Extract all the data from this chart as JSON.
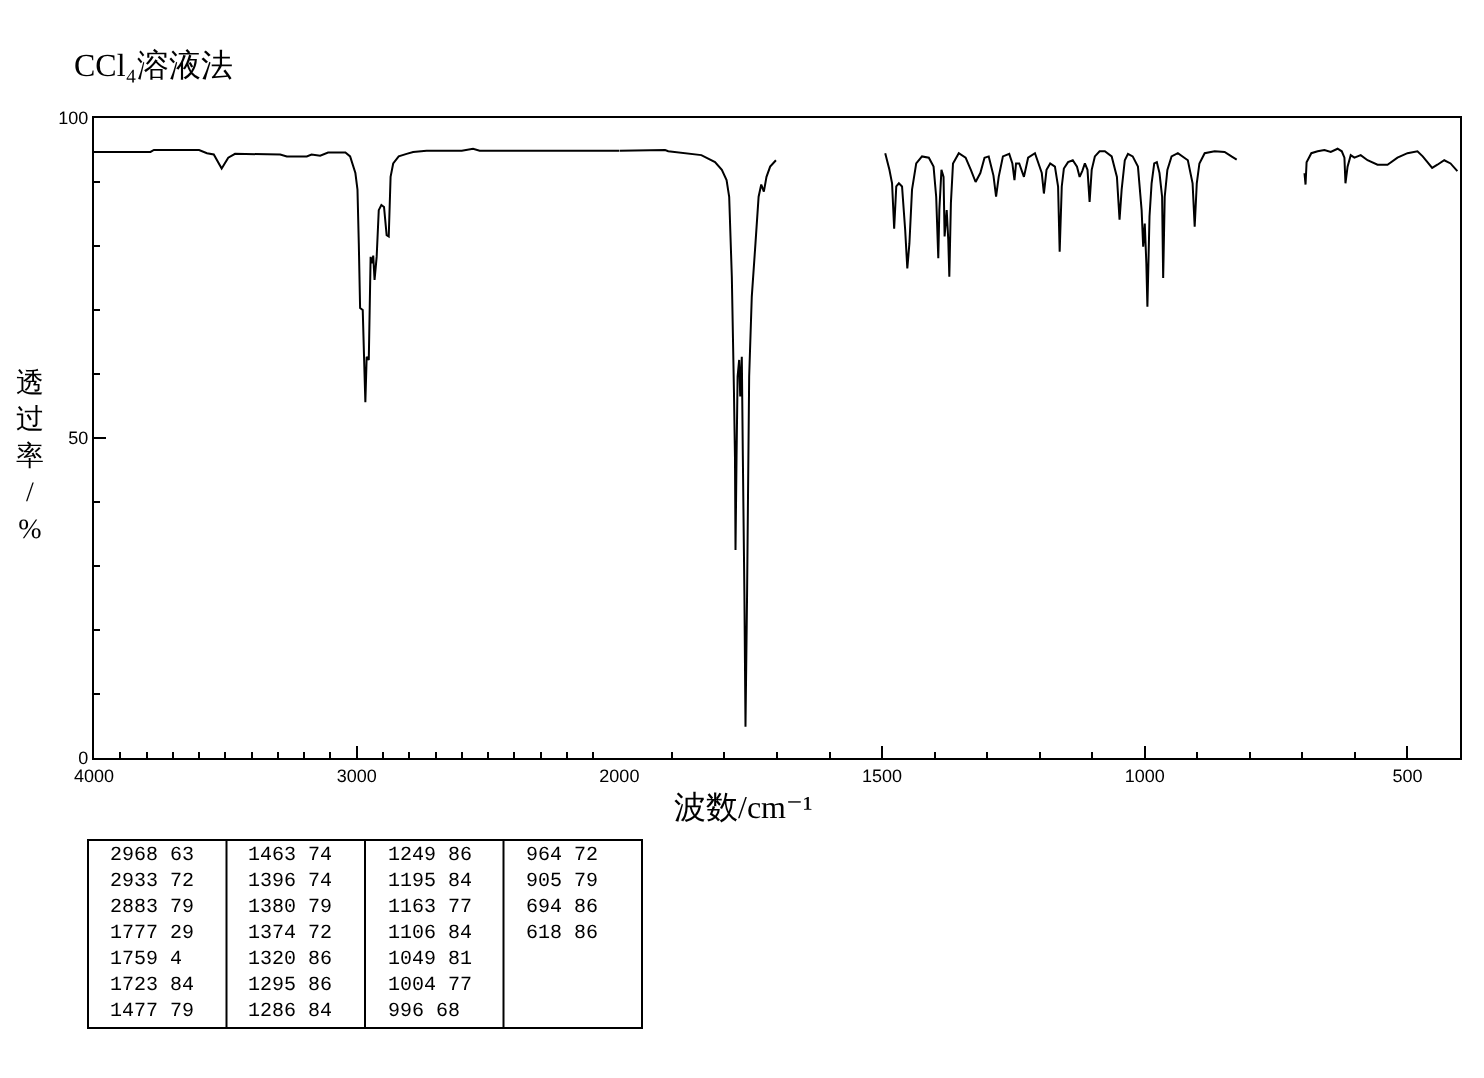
{
  "chart_data": [
    {
      "type": "line",
      "title": "CCl₄溶液法",
      "ylabel": "透过率/%",
      "color": "#000000",
      "xlim": [
        4000,
        2000
      ],
      "xticks": [
        4000,
        {
          "value": 3900,
          "label": null
        },
        {
          "value": 3800,
          "label": null
        },
        {
          "value": 3700,
          "label": null
        },
        {
          "value": 3600,
          "label": null
        },
        {
          "value": 3500,
          "label": null
        },
        {
          "value": 3400,
          "label": null
        },
        {
          "value": 3300,
          "label": null
        },
        {
          "value": 3200,
          "label": null
        },
        {
          "value": 3100,
          "label": null
        },
        3000,
        {
          "value": 2900,
          "label": null
        },
        {
          "value": 2800,
          "label": null
        },
        {
          "value": 2700,
          "label": null
        },
        {
          "value": 2600,
          "label": null
        },
        {
          "value": 2500,
          "label": null
        },
        {
          "value": 2400,
          "label": null
        },
        {
          "value": 2300,
          "label": null
        },
        {
          "value": 2200,
          "label": null
        },
        {
          "value": 2100,
          "label": null
        }
      ],
      "ylim": [
        0,
        100
      ],
      "yticks": [
        0,
        {
          "value": 10,
          "label": null
        },
        {
          "value": 20,
          "label": null
        },
        {
          "value": 30,
          "label": null
        },
        {
          "value": 40,
          "label": null
        },
        50,
        {
          "value": 60,
          "label": null
        },
        {
          "value": 70,
          "label": null
        },
        {
          "value": 80,
          "label": null
        },
        {
          "value": 90,
          "label": null
        },
        100
      ],
      "x": [
        4000,
        3785,
        3772,
        3600,
        3570,
        3544,
        3514,
        3489,
        3463,
        3291,
        3266,
        3190,
        3172,
        3139,
        3109,
        3043,
        3025,
        3005,
        2997,
        2992,
        2987,
        2977,
        2972,
        2967,
        2962,
        2954,
        2947,
        2942,
        2937,
        2932,
        2924,
        2916,
        2906,
        2896,
        2886,
        2878,
        2871,
        2861,
        2840,
        2810,
        2785,
        2734,
        2600,
        2557,
        2532,
        2000
      ],
      "values": [
        94.7,
        94.7,
        95.0,
        95.0,
        94.5,
        94.3,
        92.1,
        93.8,
        94.4,
        94.3,
        94.0,
        94.0,
        94.3,
        94.1,
        94.6,
        94.6,
        94.0,
        91.4,
        88.8,
        80.4,
        70.3,
        70.0,
        62.7,
        55.6,
        62.7,
        62.2,
        78.3,
        77.3,
        78.5,
        74.7,
        78.3,
        85.6,
        86.4,
        86.1,
        81.7,
        81.5,
        90.8,
        92.9,
        94.0,
        94.4,
        94.7,
        94.9,
        94.9,
        95.2,
        94.9,
        94.9
      ],
      "annotations": [
        "2968 63",
        "2933 72",
        "2883 79",
        "1777 29",
        "1759 4",
        "1723 84",
        "1477 79",
        "1463 74",
        "1396 74",
        "1380 79",
        "1374 72",
        "1320 86",
        "1295 86",
        "1286 84",
        "1249 86",
        "1195 84",
        "1163 77",
        "1106 84",
        "1049 81",
        "1004 77",
        "996 68",
        "964 72",
        "905 79",
        "694 86",
        "618 86"
      ]
    },
    {
      "type": "line",
      "xlabel": "波数/cm⁻¹",
      "color": "#000000",
      "xlim": [
        2000,
        400
      ],
      "xticks": [
        2000,
        {
          "value": 1900,
          "label": null
        },
        {
          "value": 1800,
          "label": null
        },
        {
          "value": 1700,
          "label": null
        },
        {
          "value": 1600,
          "label": null
        },
        1500,
        {
          "value": 1400,
          "label": null
        },
        {
          "value": 1300,
          "label": null
        },
        {
          "value": 1200,
          "label": null
        },
        {
          "value": 1100,
          "label": null
        },
        1000,
        {
          "value": 900,
          "label": null
        },
        {
          "value": 800,
          "label": null
        },
        {
          "value": 700,
          "label": null
        },
        {
          "value": 600,
          "label": null
        },
        500
      ],
      "ylim": [
        0,
        100
      ],
      "tick_labels": "x",
      "x": [
        2000,
        1913,
        1907,
        1844,
        1818,
        1805,
        1796,
        1791,
        1786,
        1782,
        1780,
        1779,
        1777,
        1775,
        1772,
        1770,
        1767,
        1765,
        1762,
        1760,
        1757,
        1753,
        1748,
        1741,
        1735,
        1730,
        1725,
        1720,
        1713,
        1702,
        1600,
        1494,
        1486,
        1481,
        1477,
        1473,
        1468,
        1462,
        1456,
        1452,
        1448,
        1443,
        1435,
        1424,
        1411,
        1402,
        1397,
        1393,
        1391,
        1387,
        1383,
        1381,
        1377,
        1374,
        1372,
        1369,
        1365,
        1354,
        1341,
        1331,
        1322,
        1313,
        1305,
        1297,
        1288,
        1283,
        1278,
        1270,
        1258,
        1252,
        1248,
        1245,
        1239,
        1230,
        1222,
        1209,
        1196,
        1192,
        1187,
        1180,
        1171,
        1165,
        1162,
        1158,
        1154,
        1146,
        1137,
        1129,
        1124,
        1119,
        1114,
        1109,
        1105,
        1101,
        1095,
        1086,
        1076,
        1063,
        1053,
        1048,
        1044,
        1038,
        1032,
        1023,
        1013,
        1006,
        1003,
        1000,
        997,
        995,
        991,
        987,
        982,
        977,
        972,
        967,
        965,
        962,
        957,
        949,
        937,
        918,
        909,
        905,
        901,
        896,
        886,
        867,
        848,
        835,
        825,
        760,
        696,
        694,
        692,
        683,
        671,
        658,
        646,
        633,
        625,
        620,
        618,
        614,
        608,
        601,
        589,
        576,
        557,
        538,
        519,
        500,
        481,
        471,
        462,
        453,
        443,
        430,
        418,
        405
      ],
      "values": [
        94.9,
        95.0,
        94.8,
        94.2,
        93.1,
        91.9,
        90.3,
        87.7,
        75.2,
        57.5,
        47.1,
        32.5,
        47.1,
        59.6,
        62.2,
        56.5,
        62.7,
        47.1,
        25.2,
        4.9,
        25.2,
        59.6,
        72.1,
        80.4,
        87.7,
        89.6,
        88.5,
        90.8,
        92.4,
        93.4,
        null,
        94.5,
        91.9,
        89.8,
        82.7,
        89.3,
        89.8,
        89.3,
        82.5,
        76.5,
        80.4,
        88.8,
        92.9,
        94.0,
        93.8,
        92.4,
        87.7,
        78.1,
        85.6,
        91.9,
        90.8,
        81.5,
        85.6,
        80.9,
        75.2,
        86.7,
        92.9,
        94.5,
        93.8,
        91.9,
        90.0,
        91.4,
        93.8,
        94.0,
        91.0,
        87.7,
        90.8,
        94.0,
        94.4,
        92.9,
        90.3,
        92.9,
        92.9,
        90.8,
        93.8,
        94.5,
        91.4,
        88.2,
        91.9,
        92.9,
        92.4,
        89.3,
        79.1,
        89.3,
        92.1,
        93.1,
        93.4,
        92.4,
        90.8,
        91.7,
        92.9,
        91.9,
        86.9,
        91.9,
        94.0,
        94.8,
        94.8,
        94.0,
        90.8,
        84.1,
        88.8,
        93.4,
        94.4,
        94.0,
        92.4,
        85.6,
        79.9,
        83.5,
        77.3,
        70.5,
        84.6,
        89.8,
        92.9,
        93.1,
        91.4,
        87.7,
        75.0,
        87.7,
        91.9,
        94.0,
        94.5,
        93.4,
        89.8,
        83.0,
        89.8,
        92.9,
        94.5,
        94.8,
        94.7,
        94.0,
        93.5,
        null,
        91.4,
        89.6,
        93.1,
        94.5,
        94.8,
        95.0,
        94.7,
        95.2,
        94.8,
        93.8,
        89.8,
        92.4,
        94.2,
        93.8,
        94.2,
        93.4,
        92.7,
        92.7,
        93.8,
        94.5,
        94.8,
        94.0,
        93.1,
        92.2,
        92.7,
        93.4,
        92.9,
        91.7
      ]
    }
  ]
}
